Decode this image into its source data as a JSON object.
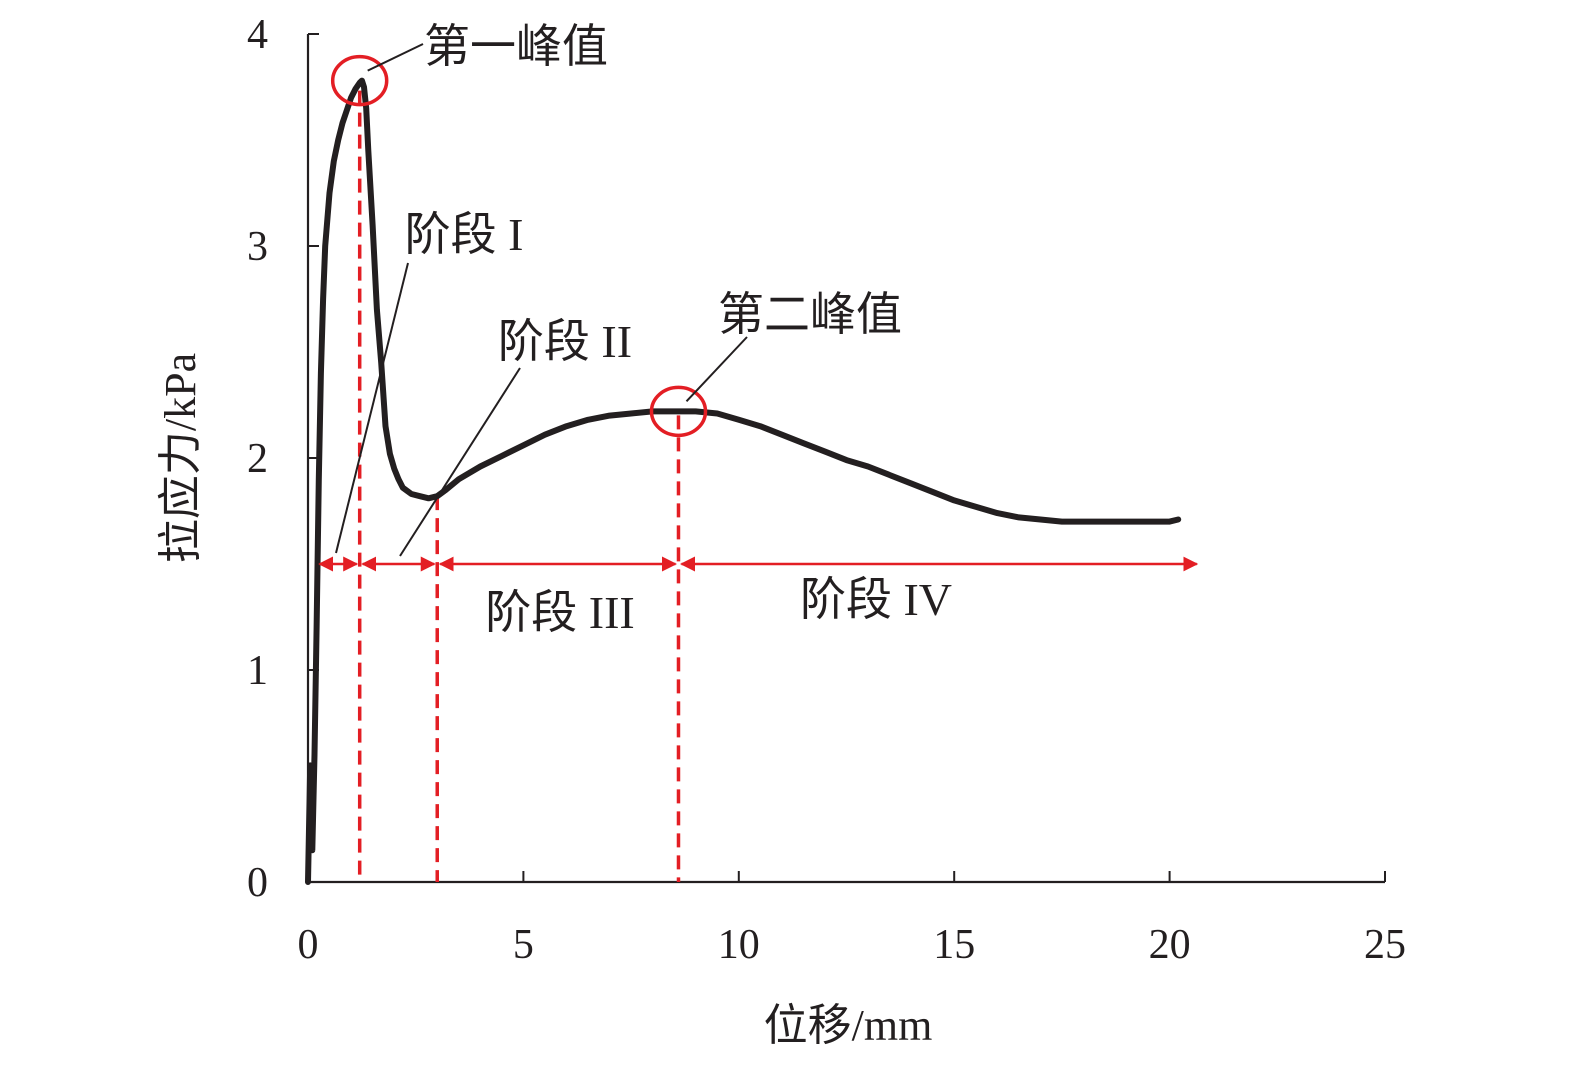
{
  "chart_data": {
    "type": "line",
    "xlabel": "位移/mm",
    "ylabel": "拉应力/kPa",
    "xlim": [
      0,
      25
    ],
    "ylim": [
      0,
      4
    ],
    "xticks": [
      0,
      5,
      10,
      15,
      20,
      25
    ],
    "yticks": [
      0,
      1,
      2,
      3,
      4
    ],
    "grid": false,
    "series": [
      {
        "color": "#231f20",
        "x": [
          0.0,
          0.05,
          0.1,
          0.15,
          0.2,
          0.25,
          0.3,
          0.35,
          0.4,
          0.5,
          0.6,
          0.7,
          0.8,
          0.9,
          1.0,
          1.1,
          1.2,
          1.25,
          1.3,
          1.35,
          1.4,
          1.5,
          1.6,
          1.7,
          1.8,
          1.9,
          2.0,
          2.1,
          2.2,
          2.4,
          2.6,
          2.8,
          3.0,
          3.2,
          3.5,
          4.0,
          4.5,
          5.0,
          5.5,
          6.0,
          6.5,
          7.0,
          7.5,
          8.0,
          8.5,
          9.0,
          9.5,
          10.0,
          10.5,
          11.0,
          11.5,
          12.0,
          12.5,
          13.0,
          13.5,
          14.0,
          14.5,
          15.0,
          15.5,
          16.0,
          16.5,
          17.0,
          17.5,
          18.0,
          18.5,
          19.0,
          19.5,
          20.0,
          20.2
        ],
        "y": [
          0.0,
          0.55,
          0.15,
          0.6,
          1.2,
          1.9,
          2.4,
          2.75,
          3.0,
          3.25,
          3.4,
          3.5,
          3.58,
          3.64,
          3.7,
          3.74,
          3.77,
          3.78,
          3.75,
          3.65,
          3.45,
          3.1,
          2.7,
          2.45,
          2.15,
          2.02,
          1.95,
          1.9,
          1.86,
          1.83,
          1.82,
          1.81,
          1.82,
          1.85,
          1.9,
          1.96,
          2.01,
          2.06,
          2.11,
          2.15,
          2.18,
          2.2,
          2.21,
          2.22,
          2.22,
          2.22,
          2.21,
          2.18,
          2.15,
          2.11,
          2.07,
          2.03,
          1.99,
          1.96,
          1.92,
          1.88,
          1.84,
          1.8,
          1.77,
          1.74,
          1.72,
          1.71,
          1.7,
          1.7,
          1.7,
          1.7,
          1.7,
          1.7,
          1.71
        ]
      }
    ],
    "annotations": {
      "peak1": {
        "label": "第一峰值",
        "x": 1.2,
        "y": 3.78
      },
      "peak2": {
        "label": "第二峰值",
        "x": 8.6,
        "y": 2.22
      },
      "stage_line_y": 1.5,
      "boundaries": [
        0.2,
        1.2,
        3.0,
        8.6,
        20.7
      ],
      "stages": [
        "阶段 I",
        "阶段 II",
        "阶段 III",
        "阶段 IV"
      ]
    }
  },
  "colors": {
    "curve": "#231f20",
    "axis": "#231f20",
    "annotation": "#e31e24"
  }
}
